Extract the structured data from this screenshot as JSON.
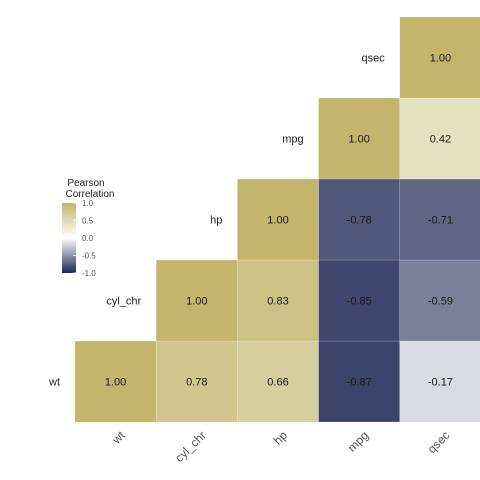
{
  "chart_data": {
    "type": "heatmap",
    "variables": [
      "wt",
      "cyl_chr",
      "hp",
      "mpg",
      "qsec"
    ],
    "x_tick_labels": [
      "wt",
      "cyl_chr",
      "hp",
      "mpg",
      "qsec"
    ],
    "cells": [
      {
        "row": "wt",
        "col": "wt",
        "value": 1.0,
        "label": "1.00"
      },
      {
        "row": "wt",
        "col": "cyl_chr",
        "value": 0.78,
        "label": "0.78"
      },
      {
        "row": "wt",
        "col": "hp",
        "value": 0.66,
        "label": "0.66"
      },
      {
        "row": "wt",
        "col": "mpg",
        "value": -0.87,
        "label": "-0.87"
      },
      {
        "row": "wt",
        "col": "qsec",
        "value": -0.17,
        "label": "-0.17"
      },
      {
        "row": "cyl_chr",
        "col": "cyl_chr",
        "value": 1.0,
        "label": "1.00"
      },
      {
        "row": "cyl_chr",
        "col": "hp",
        "value": 0.83,
        "label": "0.83"
      },
      {
        "row": "cyl_chr",
        "col": "mpg",
        "value": -0.85,
        "label": "-0.85"
      },
      {
        "row": "cyl_chr",
        "col": "qsec",
        "value": -0.59,
        "label": "-0.59"
      },
      {
        "row": "hp",
        "col": "hp",
        "value": 1.0,
        "label": "1.00"
      },
      {
        "row": "hp",
        "col": "mpg",
        "value": -0.78,
        "label": "-0.78"
      },
      {
        "row": "hp",
        "col": "qsec",
        "value": -0.71,
        "label": "-0.71"
      },
      {
        "row": "mpg",
        "col": "mpg",
        "value": 1.0,
        "label": "1.00"
      },
      {
        "row": "mpg",
        "col": "qsec",
        "value": 0.42,
        "label": "0.42"
      },
      {
        "row": "qsec",
        "col": "qsec",
        "value": 1.0,
        "label": "1.00"
      }
    ],
    "legend": {
      "title_lines": [
        "Pearson",
        "Correlation"
      ],
      "ticks": [
        {
          "value": 1.0,
          "label": "1.0"
        },
        {
          "value": 0.5,
          "label": "0.5"
        },
        {
          "value": 0.0,
          "label": "0.0"
        },
        {
          "value": -0.5,
          "label": "-0.5"
        },
        {
          "value": -1.0,
          "label": "-1.0"
        }
      ],
      "range": [
        -1,
        1
      ],
      "placement": "left"
    },
    "colors": {
      "high": "#c3b56c",
      "mid": "#ffffff",
      "low": "#1d2754"
    },
    "grid": false
  }
}
